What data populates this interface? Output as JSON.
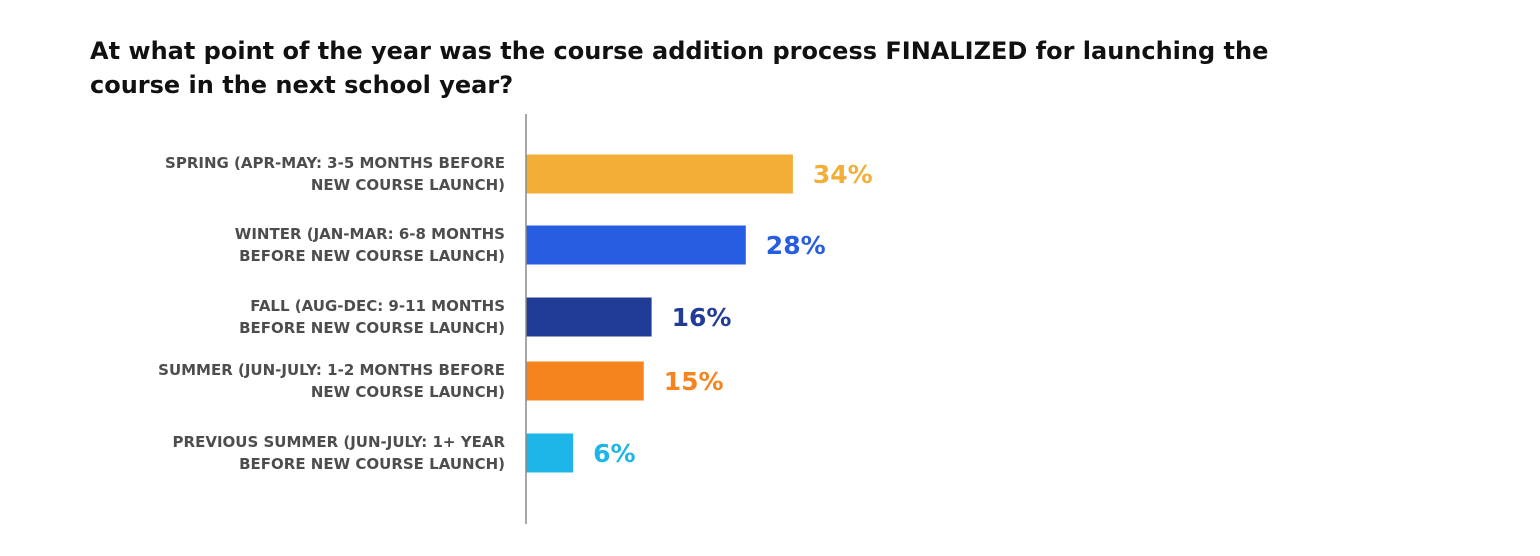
{
  "chart_data": {
    "type": "bar",
    "orientation": "horizontal",
    "title_lines": [
      "At what point of the year was the course addition process FINALIZED for launching the",
      "course in the next school year?"
    ],
    "categories": [
      [
        "SPRING (APR-MAY: 3-5 MONTHS BEFORE",
        "NEW COURSE LAUNCH)"
      ],
      [
        "WINTER (JAN-MAR: 6-8 MONTHS",
        "BEFORE NEW COURSE LAUNCH)"
      ],
      [
        "FALL (AUG-DEC: 9-11 MONTHS",
        "BEFORE NEW COURSE LAUNCH)"
      ],
      [
        "SUMMER (JUN-JULY: 1-2 MONTHS BEFORE",
        "NEW COURSE LAUNCH)"
      ],
      [
        "PREVIOUS SUMMER (JUN-JULY: 1+ YEAR",
        "BEFORE NEW COURSE LAUNCH)"
      ]
    ],
    "values": [
      34,
      28,
      16,
      15,
      6
    ],
    "value_labels": [
      "34%",
      "28%",
      "16%",
      "15%",
      "6%"
    ],
    "bar_colors": [
      "#F2AE37",
      "#275DE0",
      "#213C96",
      "#F5841F",
      "#1EB5E8"
    ],
    "value_label_colors": [
      "#F2AE37",
      "#275DE0",
      "#213C96",
      "#F5841F",
      "#1EB5E8"
    ],
    "xlim": [
      0,
      100
    ],
    "grid": false,
    "legend": "none"
  }
}
